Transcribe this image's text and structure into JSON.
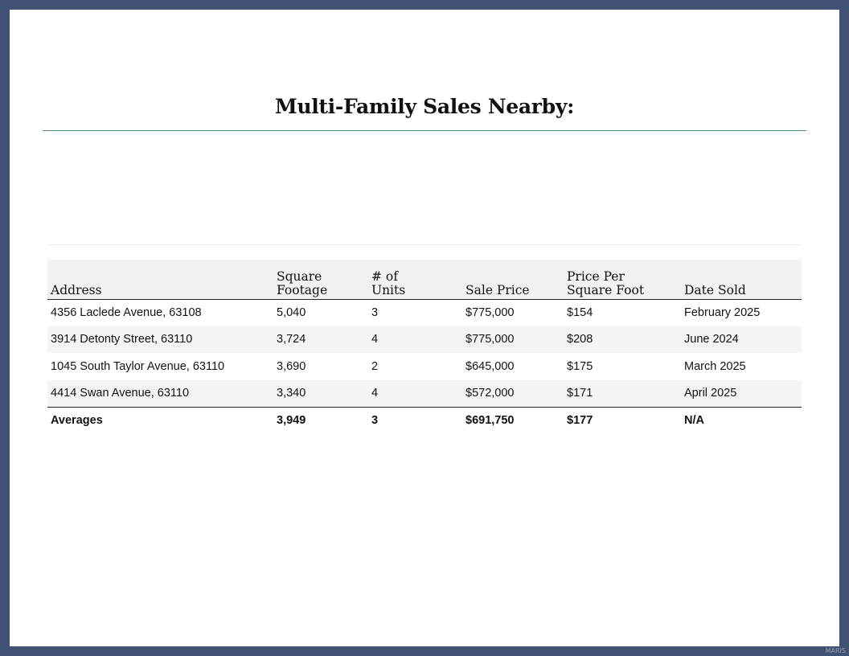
{
  "page": {
    "title": "Multi-Family Sales Nearby:",
    "watermark": "MARIS"
  },
  "table": {
    "headers": {
      "address": "Address",
      "sqft_l1": "Square",
      "sqft_l2": "Footage",
      "units_l1": "# of",
      "units_l2": "Units",
      "price": "Sale Price",
      "ppsf_l1": "Price Per",
      "ppsf_l2": "Square Foot",
      "date": "Date Sold"
    },
    "rows": [
      {
        "address": "4356 Laclede Avenue, 63108",
        "sqft": "5,040",
        "units": "3",
        "price": "$775,000",
        "ppsf": "$154",
        "date": "February 2025"
      },
      {
        "address": "3914 Detonty Street, 63110",
        "sqft": "3,724",
        "units": "4",
        "price": "$775,000",
        "ppsf": "$208",
        "date": "June 2024"
      },
      {
        "address": "1045 South Taylor Avenue, 63110",
        "sqft": "3,690",
        "units": "2",
        "price": "$645,000",
        "ppsf": "$175",
        "date": "March 2025"
      },
      {
        "address": "4414 Swan Avenue, 63110",
        "sqft": "3,340",
        "units": "4",
        "price": "$572,000",
        "ppsf": "$171",
        "date": "April 2025"
      }
    ],
    "averages": {
      "label": "Averages",
      "sqft": "3,949",
      "units": "3",
      "price": "$691,750",
      "ppsf": "$177",
      "date": "N/A"
    }
  },
  "colors": {
    "frame": "#415173",
    "rule": "#4a8a95",
    "header_bg": "#f2f2f2"
  }
}
